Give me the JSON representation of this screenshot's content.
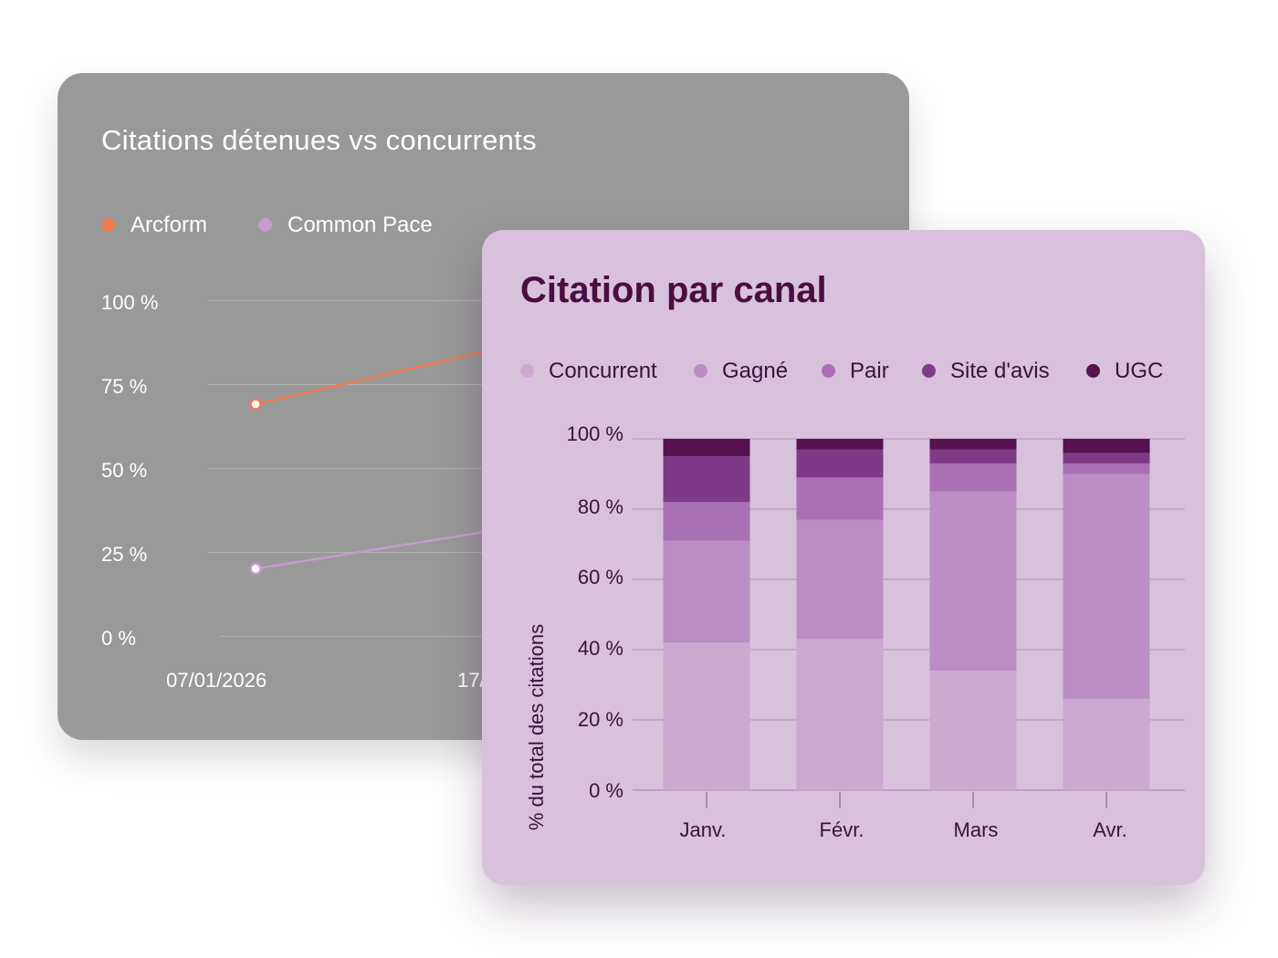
{
  "colors": {
    "arcform": "#ef7a4f",
    "common_pace": "#c89ad0",
    "concurrent": "#cda8d1",
    "gagne": "#bb8dc4",
    "pair": "#a970b3",
    "site_avis": "#7d3a87",
    "ugc": "#55124f"
  },
  "chart_data": [
    {
      "type": "line",
      "title": "Citations détenues vs concurrents",
      "legend_placement": "top-left",
      "grid": true,
      "y_ticks": [
        "100 %",
        "75 %",
        "50 %",
        "25 %",
        "0 %"
      ],
      "ylim": [
        0,
        100
      ],
      "x_labels": [
        "07/01/2026",
        "17/"
      ],
      "series": [
        {
          "name": "Arcform",
          "color": "#ef7a4f",
          "x": [
            "07/01/2026",
            "17/"
          ],
          "values": [
            69,
            89
          ]
        },
        {
          "name": "Common Pace",
          "color": "#c89ad0",
          "x": [
            "07/01/2026",
            "17/"
          ],
          "values": [
            20,
            34
          ]
        }
      ]
    },
    {
      "type": "bar",
      "stacked": true,
      "title": "Citation par canal",
      "ylabel": "% du total des citations",
      "ylim": [
        0,
        100
      ],
      "y_ticks": [
        "0 %",
        "20 %",
        "40 %",
        "60 %",
        "80 %",
        "100 %"
      ],
      "grid": true,
      "legend_placement": "top",
      "categories": [
        "Janv.",
        "Févr.",
        "Mars",
        "Avr."
      ],
      "series": [
        {
          "name": "Concurrent",
          "color": "#cda8d1",
          "values": [
            42,
            43,
            34,
            26
          ]
        },
        {
          "name": "Gagné",
          "color": "#bb8dc4",
          "values": [
            29,
            34,
            51,
            64
          ]
        },
        {
          "name": "Pair",
          "color": "#a970b3",
          "values": [
            11,
            12,
            8,
            3
          ]
        },
        {
          "name": "Site d'avis",
          "color": "#7d3a87",
          "values": [
            13,
            8,
            4,
            3
          ]
        },
        {
          "name": "UGC",
          "color": "#55124f",
          "values": [
            5,
            3,
            3,
            4
          ]
        }
      ]
    }
  ]
}
